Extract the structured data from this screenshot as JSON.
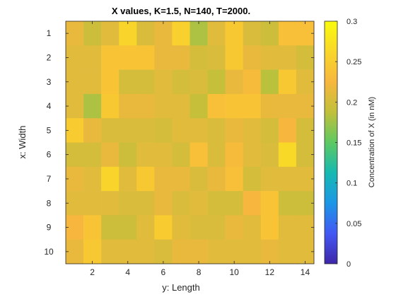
{
  "chart_data": {
    "type": "heatmap",
    "title": "X values, K=1.5, N=140, T=2000.",
    "xlabel": "y: Length",
    "ylabel": "x: Width",
    "colorbar_label": "Concentration of X (in nM)",
    "x_range": [
      0.5,
      14.5
    ],
    "y_range": [
      0.5,
      10.5
    ],
    "x_ticks": [
      2,
      4,
      6,
      8,
      10,
      12,
      14
    ],
    "y_ticks": [
      1,
      2,
      3,
      4,
      5,
      6,
      7,
      8,
      9,
      10
    ],
    "y_reversed": true,
    "colorbar_range": [
      0,
      0.3
    ],
    "colorbar_ticks": [
      0,
      0.05,
      0.1,
      0.15,
      0.2,
      0.25,
      0.3
    ],
    "colormap": "parula",
    "colormap_stops": [
      "#3e26a8",
      "#4358f4",
      "#1b96e6",
      "#16b9b2",
      "#5ec962",
      "#c1c03a",
      "#f7b73e",
      "#f9d72a",
      "#f9fb0e"
    ],
    "grid": false,
    "values": [
      [
        0.215,
        0.195,
        0.21,
        0.26,
        0.205,
        0.215,
        0.255,
        0.18,
        0.21,
        0.245,
        0.205,
        0.195,
        0.235,
        0.235
      ],
      [
        0.21,
        0.21,
        0.24,
        0.24,
        0.24,
        0.215,
        0.215,
        0.2,
        0.205,
        0.245,
        0.215,
        0.21,
        0.21,
        0.2
      ],
      [
        0.21,
        0.21,
        0.24,
        0.2,
        0.2,
        0.21,
        0.2,
        0.205,
        0.19,
        0.215,
        0.23,
        0.185,
        0.245,
        0.21
      ],
      [
        0.21,
        0.18,
        0.245,
        0.215,
        0.215,
        0.21,
        0.21,
        0.19,
        0.235,
        0.24,
        0.24,
        0.215,
        0.215,
        0.215
      ],
      [
        0.25,
        0.215,
        0.205,
        0.205,
        0.205,
        0.2,
        0.21,
        0.21,
        0.205,
        0.215,
        0.21,
        0.2,
        0.225,
        0.2
      ],
      [
        0.2,
        0.2,
        0.215,
        0.195,
        0.21,
        0.21,
        0.2,
        0.235,
        0.205,
        0.23,
        0.21,
        0.205,
        0.265,
        0.2
      ],
      [
        0.215,
        0.21,
        0.26,
        0.21,
        0.245,
        0.215,
        0.215,
        0.205,
        0.215,
        0.235,
        0.2,
        0.21,
        0.21,
        0.21
      ],
      [
        0.21,
        0.21,
        0.21,
        0.205,
        0.205,
        0.215,
        0.205,
        0.21,
        0.2,
        0.2,
        0.225,
        0.24,
        0.195,
        0.195
      ],
      [
        0.225,
        0.24,
        0.195,
        0.195,
        0.21,
        0.25,
        0.21,
        0.205,
        0.205,
        0.215,
        0.21,
        0.24,
        0.21,
        0.21
      ],
      [
        0.215,
        0.245,
        0.21,
        0.21,
        0.21,
        0.205,
        0.215,
        0.215,
        0.21,
        0.21,
        0.21,
        0.215,
        0.21,
        0.21
      ]
    ]
  }
}
